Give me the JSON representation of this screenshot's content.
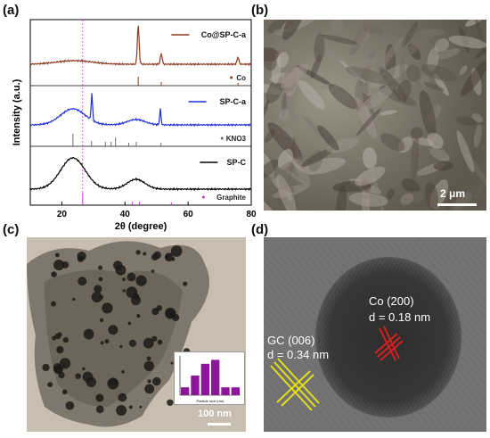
{
  "panels": {
    "a": {
      "label": "(a)"
    },
    "b": {
      "label": "(b)",
      "scale_bar": "2 μm"
    },
    "c": {
      "label": "(c)",
      "scale_bar": "100 nm"
    },
    "d": {
      "label": "(d)",
      "annotation_co_title": "Co (200)",
      "annotation_co_d": "d = 0.18 nm",
      "annotation_gc_title": "GC (006)",
      "annotation_gc_d": "d = 0.34 nm"
    }
  },
  "chart_data": [
    {
      "type": "line",
      "xlabel": "2θ (degree)",
      "ylabel": "Intensity (a.u.)",
      "xlim": [
        10,
        80
      ],
      "x_ticks": [
        20,
        40,
        60,
        80
      ],
      "series": [
        {
          "name": "Co@SP-C-a",
          "color": "#8B3A1E",
          "peaks_2theta": [
            44.2,
            51.5,
            75.8
          ]
        },
        {
          "name": "SP-C-a",
          "color": "#1F2FD6",
          "peaks_2theta": [
            23.5,
            29.5,
            43.5,
            51.2
          ]
        },
        {
          "name": "SP-C",
          "color": "#000000",
          "peaks_2theta": [
            23.5,
            43.5
          ]
        }
      ],
      "references": [
        {
          "name": "Co",
          "positions": [
            44.2,
            51.5,
            75.8
          ]
        },
        {
          "name": "KNO3",
          "positions": [
            23.5,
            29.4,
            33.8,
            35.6,
            37.0,
            41.2,
            43.6,
            51.4
          ]
        },
        {
          "name": "Graphite",
          "positions": [
            26.6,
            42.4,
            44.6,
            54.7
          ]
        }
      ],
      "reference_line_2theta": 26.6
    },
    {
      "type": "bar",
      "title": "",
      "xlabel": "Particle size (nm)",
      "categories": [
        "",
        "",
        "",
        "",
        "",
        ""
      ],
      "values": [
        2,
        5,
        8,
        9,
        2,
        2
      ],
      "color": "#8B169A"
    }
  ]
}
